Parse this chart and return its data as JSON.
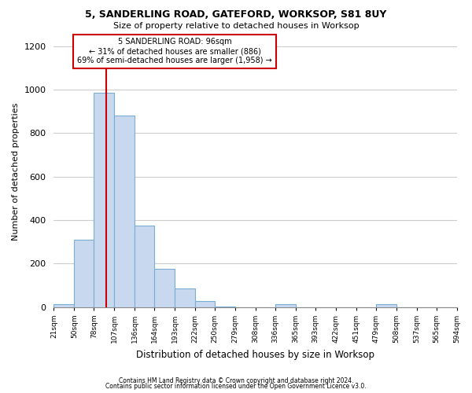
{
  "title1": "5, SANDERLING ROAD, GATEFORD, WORKSOP, S81 8UY",
  "title2": "Size of property relative to detached houses in Worksop",
  "xlabel": "Distribution of detached houses by size in Worksop",
  "ylabel": "Number of detached properties",
  "footer1": "Contains HM Land Registry data © Crown copyright and database right 2024.",
  "footer2": "Contains public sector information licensed under the Open Government Licence v3.0.",
  "annotation_title": "5 SANDERLING ROAD: 96sqm",
  "annotation_line2": "← 31% of detached houses are smaller (886)",
  "annotation_line3": "69% of semi-detached houses are larger (1,958) →",
  "bar_color": "#c8d9ef",
  "bar_edge_color": "#7aadd4",
  "highlight_line_color": "#cc0000",
  "highlight_x": 96,
  "bin_edges": [
    21,
    50,
    78,
    107,
    136,
    164,
    193,
    222,
    250,
    279,
    308,
    336,
    365,
    393,
    422,
    451,
    479,
    508,
    537,
    565,
    594
  ],
  "bar_heights": [
    15,
    310,
    985,
    880,
    375,
    175,
    85,
    27,
    3,
    0,
    0,
    12,
    0,
    0,
    0,
    0,
    12,
    0,
    0,
    0
  ],
  "ylim": [
    0,
    1250
  ],
  "xlim": [
    21,
    594
  ],
  "background_color": "#ffffff",
  "plot_bg_color": "#ffffff",
  "grid_color": "#cccccc",
  "tick_labels": [
    "21sqm",
    "50sqm",
    "78sqm",
    "107sqm",
    "136sqm",
    "164sqm",
    "193sqm",
    "222sqm",
    "250sqm",
    "279sqm",
    "308sqm",
    "336sqm",
    "365sqm",
    "393sqm",
    "422sqm",
    "451sqm",
    "479sqm",
    "508sqm",
    "537sqm",
    "565sqm",
    "594sqm"
  ],
  "yticks": [
    0,
    200,
    400,
    600,
    800,
    1000,
    1200
  ]
}
